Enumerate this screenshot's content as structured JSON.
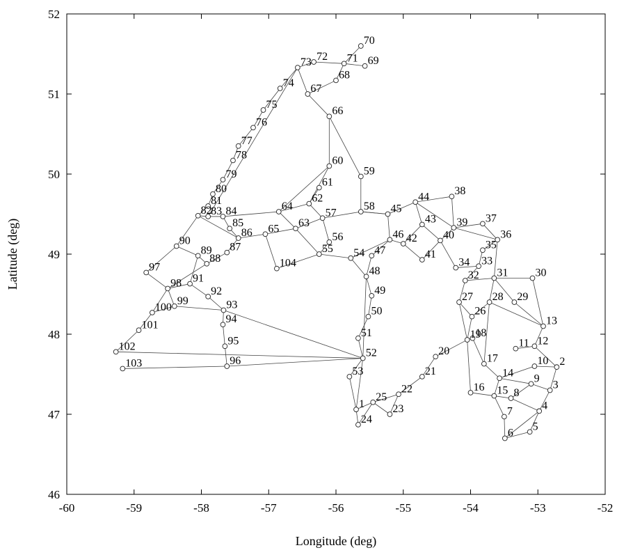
{
  "chart_data": {
    "type": "scatter",
    "xlabel": "Longitude (deg)",
    "ylabel": "Latitude (deg)",
    "xlim": [
      -60,
      -52
    ],
    "ylim": [
      46,
      52
    ],
    "xticks": [
      -60,
      -59,
      -58,
      -57,
      -56,
      -55,
      -54,
      -53,
      -52
    ],
    "yticks": [
      46,
      47,
      48,
      49,
      50,
      51,
      52
    ],
    "grid": false,
    "nodes": [
      {
        "id": "1",
        "x": -55.7,
        "y": 47.06
      },
      {
        "id": "2",
        "x": -52.72,
        "y": 47.59
      },
      {
        "id": "3",
        "x": -52.82,
        "y": 47.3
      },
      {
        "id": "4",
        "x": -52.98,
        "y": 47.04
      },
      {
        "id": "5",
        "x": -53.12,
        "y": 46.78
      },
      {
        "id": "6",
        "x": -53.49,
        "y": 46.7
      },
      {
        "id": "7",
        "x": -53.5,
        "y": 46.97
      },
      {
        "id": "8",
        "x": -53.4,
        "y": 47.2
      },
      {
        "id": "9",
        "x": -53.1,
        "y": 47.38
      },
      {
        "id": "10",
        "x": -53.05,
        "y": 47.6
      },
      {
        "id": "11",
        "x": -53.33,
        "y": 47.82
      },
      {
        "id": "12",
        "x": -53.05,
        "y": 47.85
      },
      {
        "id": "13",
        "x": -52.92,
        "y": 48.1
      },
      {
        "id": "14",
        "x": -53.57,
        "y": 47.45
      },
      {
        "id": "15",
        "x": -53.65,
        "y": 47.23
      },
      {
        "id": "16",
        "x": -54.0,
        "y": 47.27
      },
      {
        "id": "17",
        "x": -53.8,
        "y": 47.63
      },
      {
        "id": "18",
        "x": -53.97,
        "y": 47.95
      },
      {
        "id": "19",
        "x": -54.05,
        "y": 47.93
      },
      {
        "id": "20",
        "x": -54.52,
        "y": 47.72
      },
      {
        "id": "21",
        "x": -54.72,
        "y": 47.47
      },
      {
        "id": "22",
        "x": -55.07,
        "y": 47.25
      },
      {
        "id": "23",
        "x": -55.2,
        "y": 47.0
      },
      {
        "id": "24",
        "x": -55.67,
        "y": 46.87
      },
      {
        "id": "25",
        "x": -55.45,
        "y": 47.15
      },
      {
        "id": "26",
        "x": -53.98,
        "y": 48.22
      },
      {
        "id": "27",
        "x": -54.17,
        "y": 48.4
      },
      {
        "id": "28",
        "x": -53.72,
        "y": 48.4
      },
      {
        "id": "29",
        "x": -53.35,
        "y": 48.4
      },
      {
        "id": "30",
        "x": -53.08,
        "y": 48.7
      },
      {
        "id": "31",
        "x": -53.65,
        "y": 48.7
      },
      {
        "id": "32",
        "x": -54.08,
        "y": 48.67
      },
      {
        "id": "33",
        "x": -53.88,
        "y": 48.85
      },
      {
        "id": "34",
        "x": -54.22,
        "y": 48.83
      },
      {
        "id": "35",
        "x": -53.82,
        "y": 49.05
      },
      {
        "id": "36",
        "x": -53.6,
        "y": 49.18
      },
      {
        "id": "37",
        "x": -53.82,
        "y": 49.38
      },
      {
        "id": "38",
        "x": -54.28,
        "y": 49.72
      },
      {
        "id": "39",
        "x": -54.25,
        "y": 49.33
      },
      {
        "id": "40",
        "x": -54.45,
        "y": 49.17
      },
      {
        "id": "41",
        "x": -54.72,
        "y": 48.93
      },
      {
        "id": "42",
        "x": -55.0,
        "y": 49.13
      },
      {
        "id": "43",
        "x": -54.72,
        "y": 49.37
      },
      {
        "id": "44",
        "x": -54.82,
        "y": 49.65
      },
      {
        "id": "45",
        "x": -55.23,
        "y": 49.5
      },
      {
        "id": "46",
        "x": -55.2,
        "y": 49.18
      },
      {
        "id": "47",
        "x": -55.47,
        "y": 48.98
      },
      {
        "id": "48",
        "x": -55.55,
        "y": 48.72
      },
      {
        "id": "49",
        "x": -55.47,
        "y": 48.48
      },
      {
        "id": "50",
        "x": -55.52,
        "y": 48.22
      },
      {
        "id": "51",
        "x": -55.67,
        "y": 47.95
      },
      {
        "id": "52",
        "x": -55.6,
        "y": 47.7
      },
      {
        "id": "53",
        "x": -55.8,
        "y": 47.47
      },
      {
        "id": "54",
        "x": -55.78,
        "y": 48.95
      },
      {
        "id": "55",
        "x": -56.25,
        "y": 49.0
      },
      {
        "id": "56",
        "x": -56.1,
        "y": 49.15
      },
      {
        "id": "57",
        "x": -56.2,
        "y": 49.45
      },
      {
        "id": "58",
        "x": -55.63,
        "y": 49.53
      },
      {
        "id": "59",
        "x": -55.63,
        "y": 49.97
      },
      {
        "id": "60",
        "x": -56.1,
        "y": 50.1
      },
      {
        "id": "61",
        "x": -56.25,
        "y": 49.83
      },
      {
        "id": "62",
        "x": -56.4,
        "y": 49.63
      },
      {
        "id": "63",
        "x": -56.6,
        "y": 49.32
      },
      {
        "id": "64",
        "x": -56.85,
        "y": 49.53
      },
      {
        "id": "65",
        "x": -57.05,
        "y": 49.25
      },
      {
        "id": "66",
        "x": -56.1,
        "y": 50.72
      },
      {
        "id": "67",
        "x": -56.42,
        "y": 51.0
      },
      {
        "id": "68",
        "x": -56.0,
        "y": 51.17
      },
      {
        "id": "69",
        "x": -55.57,
        "y": 51.35
      },
      {
        "id": "70",
        "x": -55.63,
        "y": 51.6
      },
      {
        "id": "71",
        "x": -55.88,
        "y": 51.38
      },
      {
        "id": "72",
        "x": -56.33,
        "y": 51.4
      },
      {
        "id": "73",
        "x": -56.57,
        "y": 51.33
      },
      {
        "id": "74",
        "x": -56.83,
        "y": 51.07
      },
      {
        "id": "75",
        "x": -57.08,
        "y": 50.8
      },
      {
        "id": "76",
        "x": -57.23,
        "y": 50.58
      },
      {
        "id": "77",
        "x": -57.45,
        "y": 50.35
      },
      {
        "id": "78",
        "x": -57.53,
        "y": 50.17
      },
      {
        "id": "79",
        "x": -57.68,
        "y": 49.93
      },
      {
        "id": "80",
        "x": -57.83,
        "y": 49.75
      },
      {
        "id": "81",
        "x": -57.9,
        "y": 49.6
      },
      {
        "id": "82",
        "x": -58.05,
        "y": 49.48
      },
      {
        "id": "83",
        "x": -57.9,
        "y": 49.47
      },
      {
        "id": "84",
        "x": -57.68,
        "y": 49.47
      },
      {
        "id": "85",
        "x": -57.58,
        "y": 49.32
      },
      {
        "id": "86",
        "x": -57.45,
        "y": 49.2
      },
      {
        "id": "87",
        "x": -57.62,
        "y": 49.02
      },
      {
        "id": "88",
        "x": -57.92,
        "y": 48.88
      },
      {
        "id": "89",
        "x": -58.05,
        "y": 48.98
      },
      {
        "id": "90",
        "x": -58.37,
        "y": 49.1
      },
      {
        "id": "91",
        "x": -58.17,
        "y": 48.63
      },
      {
        "id": "92",
        "x": -57.9,
        "y": 48.47
      },
      {
        "id": "93",
        "x": -57.67,
        "y": 48.3
      },
      {
        "id": "94",
        "x": -57.68,
        "y": 48.12
      },
      {
        "id": "95",
        "x": -57.65,
        "y": 47.85
      },
      {
        "id": "96",
        "x": -57.62,
        "y": 47.6
      },
      {
        "id": "97",
        "x": -58.82,
        "y": 48.77
      },
      {
        "id": "98",
        "x": -58.5,
        "y": 48.57
      },
      {
        "id": "99",
        "x": -58.4,
        "y": 48.35
      },
      {
        "id": "100",
        "x": -58.73,
        "y": 48.27
      },
      {
        "id": "101",
        "x": -58.93,
        "y": 48.05
      },
      {
        "id": "102",
        "x": -59.27,
        "y": 47.78
      },
      {
        "id": "103",
        "x": -59.17,
        "y": 47.57
      },
      {
        "id": "104",
        "x": -56.88,
        "y": 48.82
      }
    ],
    "edges": [
      [
        1,
        53
      ],
      [
        1,
        52
      ],
      [
        1,
        25
      ],
      [
        1,
        24
      ],
      [
        24,
        25
      ],
      [
        25,
        23
      ],
      [
        25,
        22
      ],
      [
        22,
        23
      ],
      [
        22,
        21
      ],
      [
        21,
        20
      ],
      [
        20,
        19
      ],
      [
        19,
        26
      ],
      [
        26,
        27
      ],
      [
        27,
        19
      ],
      [
        19,
        18
      ],
      [
        18,
        17
      ],
      [
        17,
        28
      ],
      [
        19,
        16
      ],
      [
        16,
        15
      ],
      [
        15,
        14
      ],
      [
        14,
        17
      ],
      [
        14,
        9
      ],
      [
        14,
        10
      ],
      [
        10,
        2
      ],
      [
        2,
        3
      ],
      [
        3,
        9
      ],
      [
        9,
        8
      ],
      [
        8,
        15
      ],
      [
        15,
        7
      ],
      [
        7,
        6
      ],
      [
        6,
        5
      ],
      [
        5,
        4
      ],
      [
        4,
        3
      ],
      [
        4,
        8
      ],
      [
        6,
        4
      ],
      [
        12,
        13
      ],
      [
        12,
        2
      ],
      [
        11,
        12
      ],
      [
        13,
        28
      ],
      [
        13,
        30
      ],
      [
        30,
        31
      ],
      [
        31,
        29
      ],
      [
        29,
        13
      ],
      [
        28,
        26
      ],
      [
        28,
        31
      ],
      [
        31,
        32
      ],
      [
        32,
        27
      ],
      [
        31,
        36
      ],
      [
        36,
        35
      ],
      [
        35,
        33
      ],
      [
        33,
        34
      ],
      [
        32,
        33
      ],
      [
        36,
        37
      ],
      [
        37,
        39
      ],
      [
        39,
        38
      ],
      [
        38,
        44
      ],
      [
        44,
        43
      ],
      [
        44,
        45
      ],
      [
        44,
        39
      ],
      [
        43,
        40
      ],
      [
        43,
        42
      ],
      [
        42,
        46
      ],
      [
        40,
        39
      ],
      [
        40,
        41
      ],
      [
        41,
        42
      ],
      [
        39,
        36
      ],
      [
        40,
        34
      ],
      [
        46,
        45
      ],
      [
        45,
        58
      ],
      [
        46,
        47
      ],
      [
        47,
        48
      ],
      [
        46,
        54
      ],
      [
        54,
        48
      ],
      [
        48,
        49
      ],
      [
        49,
        50
      ],
      [
        50,
        51
      ],
      [
        51,
        52
      ],
      [
        52,
        53
      ],
      [
        48,
        52
      ],
      [
        54,
        55
      ],
      [
        55,
        56
      ],
      [
        56,
        57
      ],
      [
        57,
        58
      ],
      [
        58,
        59
      ],
      [
        59,
        66
      ],
      [
        60,
        66
      ],
      [
        60,
        62
      ],
      [
        61,
        62
      ],
      [
        57,
        62
      ],
      [
        62,
        64
      ],
      [
        64,
        63
      ],
      [
        63,
        57
      ],
      [
        63,
        65
      ],
      [
        63,
        55
      ],
      [
        55,
        104
      ],
      [
        104,
        65
      ],
      [
        65,
        86
      ],
      [
        86,
        85
      ],
      [
        85,
        84
      ],
      [
        84,
        83
      ],
      [
        83,
        82
      ],
      [
        82,
        81
      ],
      [
        81,
        80
      ],
      [
        80,
        79
      ],
      [
        79,
        78
      ],
      [
        78,
        77
      ],
      [
        77,
        76
      ],
      [
        76,
        75
      ],
      [
        75,
        74
      ],
      [
        74,
        73
      ],
      [
        73,
        72
      ],
      [
        72,
        71
      ],
      [
        71,
        70
      ],
      [
        71,
        69
      ],
      [
        71,
        68
      ],
      [
        68,
        67
      ],
      [
        67,
        66
      ],
      [
        67,
        73
      ],
      [
        73,
        83
      ],
      [
        64,
        84
      ],
      [
        64,
        60
      ],
      [
        86,
        87
      ],
      [
        87,
        88
      ],
      [
        88,
        89
      ],
      [
        89,
        90
      ],
      [
        90,
        82
      ],
      [
        89,
        91
      ],
      [
        91,
        98
      ],
      [
        98,
        97
      ],
      [
        97,
        90
      ],
      [
        91,
        92
      ],
      [
        92,
        93
      ],
      [
        93,
        94
      ],
      [
        94,
        95
      ],
      [
        95,
        96
      ],
      [
        96,
        103
      ],
      [
        96,
        52
      ],
      [
        93,
        52
      ],
      [
        98,
        99
      ],
      [
        99,
        100
      ],
      [
        100,
        101
      ],
      [
        101,
        102
      ],
      [
        102,
        52
      ],
      [
        99,
        93
      ],
      [
        98,
        100
      ],
      [
        88,
        98
      ],
      [
        58,
        45
      ],
      [
        86,
        82
      ]
    ]
  }
}
